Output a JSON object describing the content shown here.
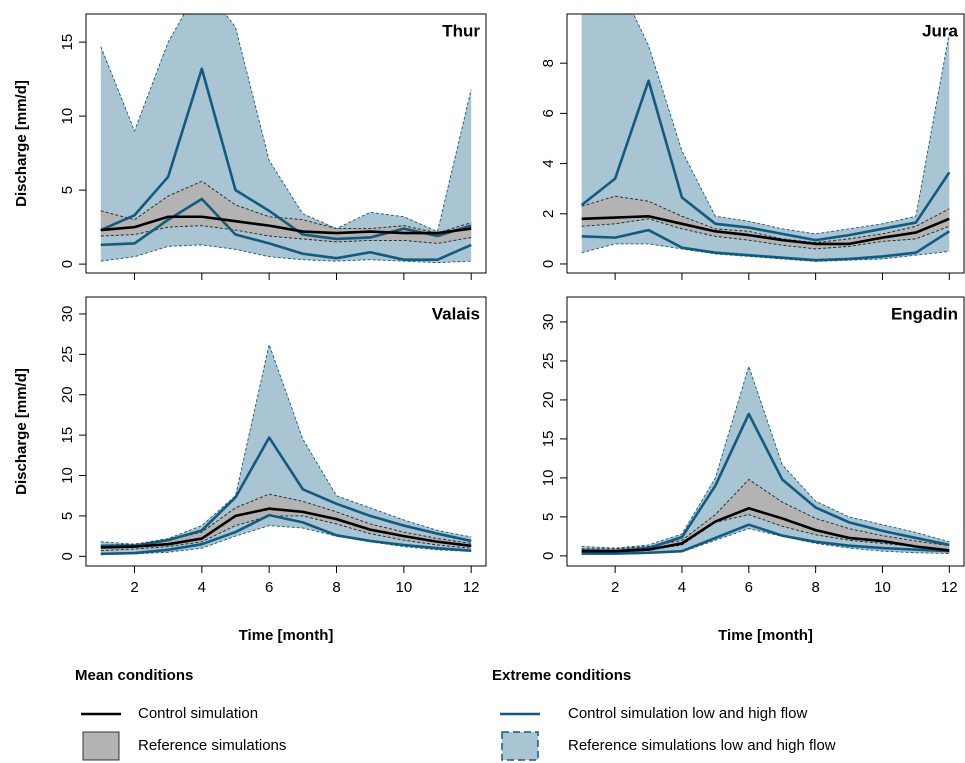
{
  "chart_data": [
    {
      "type": "line",
      "title": "Thur",
      "ylabel": "Discharge [mm/d]",
      "x": [
        1,
        2,
        3,
        4,
        5,
        6,
        7,
        8,
        9,
        10,
        11,
        12
      ],
      "xlim": [
        0.56,
        12.44
      ],
      "xticks": [
        2,
        4,
        6,
        8,
        10,
        12
      ],
      "ylim": [
        -0.6,
        16.9
      ],
      "yticks": [
        0,
        5,
        10,
        15
      ],
      "extreme_band": {
        "low": [
          0.2,
          0.5,
          1.2,
          1.3,
          1.0,
          0.5,
          0.3,
          0.2,
          0.3,
          0.2,
          0.1,
          0.2
        ],
        "high": [
          14.7,
          9.0,
          15,
          19,
          16,
          7.0,
          3.4,
          2.4,
          3.5,
          3.2,
          2.2,
          11.8
        ]
      },
      "extreme_control": {
        "low": [
          1.3,
          1.4,
          3.0,
          4.4,
          2.0,
          1.4,
          0.7,
          0.4,
          0.8,
          0.3,
          0.3,
          1.3
        ],
        "high": [
          2.3,
          3.3,
          5.9,
          13.2,
          5.0,
          3.6,
          2.0,
          1.7,
          1.8,
          2.4,
          1.9,
          2.6
        ]
      },
      "reference_band": {
        "low": [
          1.9,
          2.0,
          2.5,
          2.6,
          2.3,
          1.9,
          1.7,
          1.5,
          1.6,
          1.6,
          1.4,
          1.8
        ],
        "high": [
          3.6,
          3.0,
          4.6,
          5.6,
          4.0,
          3.2,
          3.0,
          2.4,
          2.4,
          2.6,
          2.1,
          2.8
        ]
      },
      "control": [
        2.3,
        2.5,
        3.2,
        3.2,
        2.9,
        2.6,
        2.2,
        2.1,
        2.2,
        2.1,
        2.1,
        2.4
      ]
    },
    {
      "type": "line",
      "title": "Jura",
      "x": [
        1,
        2,
        3,
        4,
        5,
        6,
        7,
        8,
        9,
        10,
        11,
        12
      ],
      "xlim": [
        0.56,
        12.44
      ],
      "xticks": [
        2,
        4,
        6,
        8,
        10,
        12
      ],
      "ylim": [
        -0.36,
        9.96
      ],
      "yticks": [
        0,
        2,
        4,
        6,
        8
      ],
      "extreme_band": {
        "low": [
          0.45,
          0.8,
          0.8,
          0.6,
          0.4,
          0.3,
          0.2,
          0.1,
          0.15,
          0.2,
          0.35,
          0.5
        ],
        "high": [
          11,
          11.5,
          8.7,
          4.5,
          1.9,
          1.7,
          1.4,
          1.2,
          1.4,
          1.6,
          1.9,
          9.2
        ]
      },
      "extreme_control": {
        "low": [
          1.1,
          1.05,
          1.35,
          0.65,
          0.45,
          0.35,
          0.25,
          0.15,
          0.2,
          0.3,
          0.45,
          1.3
        ],
        "high": [
          2.35,
          3.4,
          7.3,
          2.65,
          1.6,
          1.45,
          1.2,
          0.95,
          1.15,
          1.4,
          1.65,
          3.65
        ]
      },
      "reference_band": {
        "low": [
          1.5,
          1.6,
          1.8,
          1.4,
          1.1,
          0.95,
          0.75,
          0.6,
          0.7,
          0.9,
          1.0,
          1.5
        ],
        "high": [
          2.3,
          2.7,
          2.5,
          1.9,
          1.4,
          1.3,
          1.0,
          0.85,
          1.0,
          1.2,
          1.5,
          2.2
        ]
      },
      "control": [
        1.8,
        1.85,
        1.9,
        1.6,
        1.3,
        1.15,
        0.95,
        0.8,
        0.8,
        1.05,
        1.25,
        1.8
      ]
    },
    {
      "type": "line",
      "title": "Valais",
      "ylabel": "Discharge [mm/d]",
      "xlabel": "Time [month]",
      "x": [
        1,
        2,
        3,
        4,
        5,
        6,
        7,
        8,
        9,
        10,
        11,
        12
      ],
      "xlim": [
        0.56,
        12.44
      ],
      "xticks": [
        2,
        4,
        6,
        8,
        10,
        12
      ],
      "ylim": [
        -1.2,
        32.1
      ],
      "yticks": [
        0,
        5,
        10,
        15,
        20,
        25,
        30
      ],
      "extreme_band": {
        "low": [
          0.2,
          0.3,
          0.5,
          1.0,
          2.5,
          3.8,
          3.5,
          2.5,
          1.8,
          1.2,
          0.8,
          0.6
        ],
        "high": [
          1.8,
          1.5,
          2.2,
          3.8,
          7.5,
          26.2,
          14.5,
          7.5,
          6.0,
          4.5,
          3.2,
          2.4
        ]
      },
      "extreme_control": {
        "low": [
          0.3,
          0.4,
          0.8,
          1.5,
          3.0,
          5.1,
          4.2,
          2.6,
          1.9,
          1.4,
          1.0,
          0.7
        ],
        "high": [
          1.3,
          1.3,
          2.0,
          3.2,
          7.3,
          14.7,
          8.3,
          6.5,
          5.0,
          3.8,
          2.8,
          1.9
        ]
      },
      "reference_band": {
        "low": [
          0.7,
          0.9,
          1.2,
          1.8,
          3.8,
          5.0,
          5.0,
          4.0,
          2.8,
          2.0,
          1.4,
          1.0
        ],
        "high": [
          1.4,
          1.5,
          2.0,
          3.0,
          6.0,
          7.7,
          6.8,
          5.5,
          4.0,
          3.0,
          2.2,
          1.6
        ]
      },
      "control": [
        1.1,
        1.2,
        1.5,
        2.2,
        5.0,
        5.9,
        5.5,
        4.6,
        3.3,
        2.5,
        1.8,
        1.3
      ]
    },
    {
      "type": "line",
      "title": "Engadin",
      "xlabel": "Time [month]",
      "x": [
        1,
        2,
        3,
        4,
        5,
        6,
        7,
        8,
        9,
        10,
        11,
        12
      ],
      "xlim": [
        0.56,
        12.44
      ],
      "xticks": [
        2,
        4,
        6,
        8,
        10,
        12
      ],
      "ylim": [
        -1.3,
        33.2
      ],
      "yticks": [
        0,
        5,
        10,
        15,
        20,
        25,
        30
      ],
      "extreme_band": {
        "low": [
          0.2,
          0.2,
          0.3,
          0.5,
          2.0,
          3.5,
          2.5,
          1.6,
          1.0,
          0.6,
          0.4,
          0.3
        ],
        "high": [
          1.2,
          1.0,
          1.4,
          2.8,
          10,
          24.3,
          11.7,
          7.0,
          5.0,
          4.0,
          3.0,
          1.8
        ]
      },
      "extreme_control": {
        "low": [
          0.3,
          0.3,
          0.4,
          0.6,
          2.3,
          4.0,
          2.6,
          1.8,
          1.3,
          1.0,
          0.8,
          0.6
        ],
        "high": [
          0.7,
          0.6,
          1.0,
          2.4,
          9.0,
          18.2,
          9.8,
          6.2,
          4.3,
          3.2,
          2.3,
          1.4
        ]
      },
      "reference_band": {
        "low": [
          0.5,
          0.5,
          0.7,
          1.4,
          4.3,
          5.3,
          3.8,
          2.7,
          2.0,
          1.6,
          1.2,
          0.8
        ],
        "high": [
          0.9,
          0.9,
          1.2,
          2.0,
          5.3,
          9.8,
          6.9,
          4.8,
          3.5,
          2.6,
          1.9,
          1.3
        ]
      },
      "control": [
        0.6,
        0.6,
        0.8,
        1.6,
        4.4,
        6.1,
        4.8,
        3.3,
        2.3,
        1.9,
        1.2,
        0.7
      ]
    }
  ],
  "legend": {
    "groups": [
      {
        "title": "Mean conditions",
        "items": [
          {
            "label": "Control simulation",
            "kind": "line",
            "color": "#000000"
          },
          {
            "label": "Reference simulations",
            "kind": "band",
            "color": "#b3b3b3"
          }
        ]
      },
      {
        "title": "Extreme conditions",
        "items": [
          {
            "label": "Control simulation low and high flow",
            "kind": "line",
            "color": "#135a80"
          },
          {
            "label": "Reference simulations low and high flow",
            "kind": "band",
            "color": "#a9c4d3"
          }
        ]
      }
    ]
  }
}
